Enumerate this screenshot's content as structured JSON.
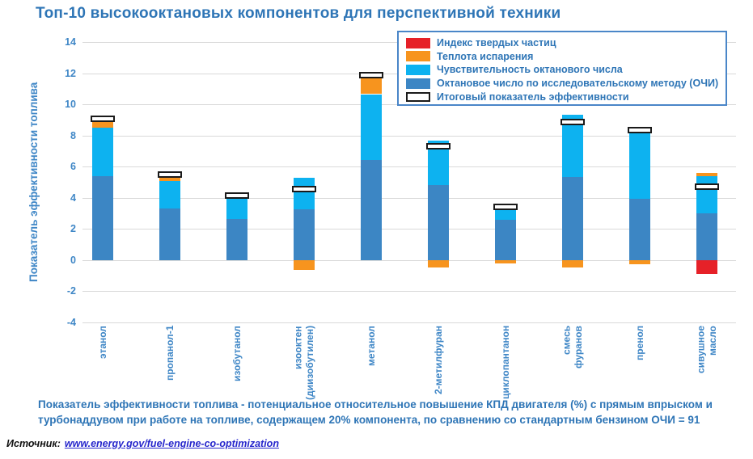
{
  "title": "Топ-10 высокооктановых компонентов для перспективной техники",
  "chart_data": {
    "type": "bar",
    "stacked": true,
    "categories": [
      "этанол",
      "пропанол-1",
      "изобутанол",
      "изооктен\n(диизобутилен)",
      "метанол",
      "2-метилфуран",
      "циклопантанон",
      "смесь фуранов",
      "пренол",
      "сивушное\nмасло"
    ],
    "series": [
      {
        "name": "Индекс твердых частиц",
        "color": "#E62128",
        "marker": false,
        "values": [
          0,
          0,
          0,
          0,
          0,
          0,
          0,
          0,
          0,
          -0.9
        ]
      },
      {
        "name": "Теплота испарения",
        "color": "#F7941E",
        "marker": false,
        "values": [
          0.5,
          0.2,
          0,
          -0.65,
          1.05,
          -0.45,
          -0.2,
          -0.45,
          -0.25,
          0.2
        ]
      },
      {
        "name": "Чувствительность октанового числа",
        "color": "#0DB2F0",
        "marker": false,
        "values": [
          3.1,
          1.8,
          1.3,
          2.05,
          4.2,
          2.9,
          0.6,
          4.0,
          4.25,
          2.4
        ]
      },
      {
        "name": "Октановое число по исследовательскому методу (ОЧИ)",
        "color": "#3C86C4",
        "marker": false,
        "values": [
          5.4,
          3.3,
          2.65,
          3.25,
          6.45,
          4.8,
          2.6,
          5.35,
          3.95,
          3.0
        ]
      },
      {
        "name": "Итоговый показатель эффективности",
        "color": "#FFFFFF",
        "marker": true,
        "values": [
          9.1,
          5.5,
          4.15,
          4.55,
          11.9,
          7.3,
          3.4,
          8.85,
          8.35,
          4.7
        ]
      }
    ],
    "ylabel": "Показатель эффективности топлива",
    "xlabel": "",
    "ylim": [
      -4,
      14
    ],
    "yticks": [
      14,
      12,
      10,
      8,
      6,
      4,
      2,
      0,
      -2,
      -4
    ],
    "grid": true,
    "legend_position": "top-right",
    "accent_color": "#2E75B6",
    "gridline_color": "#D9D9D9",
    "marker_style": "white box with black border"
  },
  "footer": {
    "note_line1": "Показатель эффективности топлива - потенциальное относительное повышение КПД двигателя (%) с прямым впрыском и",
    "note_line2": "турбонаддувом при работе на топливе, содержащем 20% компонента, по сравнению со стандартным бензином ОЧИ = 91",
    "source_label": "Источник:",
    "source_url": "www.energy.gov/fuel-engine-co-optimization"
  }
}
